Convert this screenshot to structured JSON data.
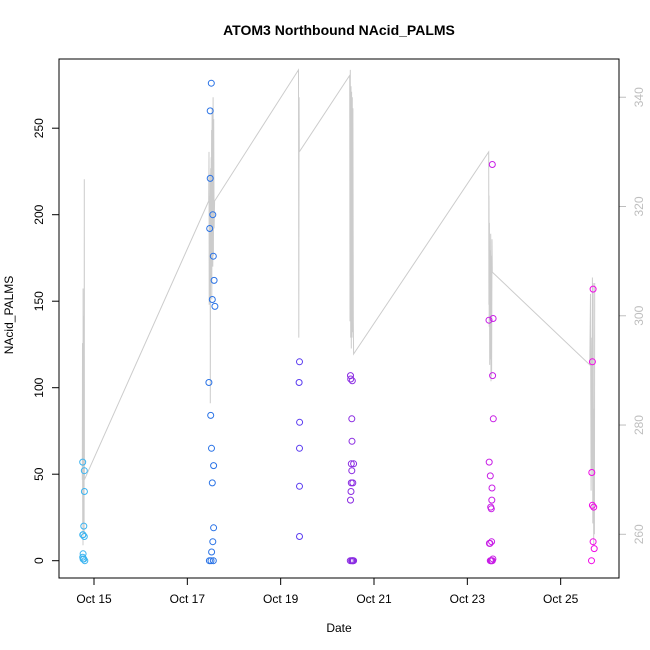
{
  "chart_data": {
    "type": "scatter",
    "title": "ATOM3 Northbound NAcid_PALMS",
    "xlabel": "Date",
    "ylabel": "NAcid_PALMS",
    "xlim": [
      "2016-10-14T06:00",
      "2016-10-26T06:00"
    ],
    "ylim": [
      -10,
      290
    ],
    "y2lim": [
      252,
      347
    ],
    "x_ticks": [
      {
        "label": "Oct 15",
        "value": "2016-10-15T00:00"
      },
      {
        "label": "Oct 17",
        "value": "2016-10-17T00:00"
      },
      {
        "label": "Oct 19",
        "value": "2016-10-19T00:00"
      },
      {
        "label": "Oct 21",
        "value": "2016-10-21T00:00"
      },
      {
        "label": "Oct 23",
        "value": "2016-10-23T00:00"
      },
      {
        "label": "Oct 25",
        "value": "2016-10-25T00:00"
      }
    ],
    "y_ticks": [
      0,
      50,
      100,
      150,
      200,
      250
    ],
    "y2_ticks": [
      260,
      280,
      300,
      320,
      340
    ],
    "grid": false,
    "legend": "none",
    "series": [
      {
        "kind": "points",
        "marker": "open-circle",
        "points": [
          [
            "2016-10-14T18:10",
            57,
            "#3cb4f0"
          ],
          [
            "2016-10-14T18:10",
            15,
            "#3cb4f0"
          ],
          [
            "2016-10-14T18:25",
            15,
            "#3cb4f0"
          ],
          [
            "2016-10-14T18:10",
            2,
            "#3cb4f0"
          ],
          [
            "2016-10-14T18:25",
            4,
            "#3cb4f0"
          ],
          [
            "2016-10-14T18:25",
            1,
            "#3cb4f0"
          ],
          [
            "2016-10-14T18:45",
            1,
            "#3cb4f0"
          ],
          [
            "2016-10-14T18:45",
            20,
            "#3cb4f0"
          ],
          [
            "2016-10-14T19:00",
            14,
            "#3cb4f0"
          ],
          [
            "2016-10-14T19:00",
            52,
            "#3cb4f0"
          ],
          [
            "2016-10-14T19:05",
            40,
            "#3cb4f0"
          ],
          [
            "2016-10-14T19:15",
            0,
            "#3cb4f0"
          ],
          [
            "2016-10-17T11:05",
            103,
            "#2a73e6"
          ],
          [
            "2016-10-17T11:20",
            0,
            "#2a73e6"
          ],
          [
            "2016-10-17T11:30",
            192,
            "#2a73e6"
          ],
          [
            "2016-10-17T11:45",
            221,
            "#2a73e6"
          ],
          [
            "2016-10-17T11:45",
            260,
            "#2a73e6"
          ],
          [
            "2016-10-17T12:00",
            84,
            "#2a73e6"
          ],
          [
            "2016-10-17T12:10",
            0,
            "#2a73e6"
          ],
          [
            "2016-10-17T12:20",
            276,
            "#2a73e6"
          ],
          [
            "2016-10-17T12:25",
            65,
            "#2a73e6"
          ],
          [
            "2016-10-17T12:30",
            5,
            "#2a73e6"
          ],
          [
            "2016-10-17T12:50",
            151,
            "#2a73e6"
          ],
          [
            "2016-10-17T12:50",
            45,
            "#2a73e6"
          ],
          [
            "2016-10-17T13:05",
            200,
            "#2a73e6"
          ],
          [
            "2016-10-17T13:05",
            11,
            "#2a73e6"
          ],
          [
            "2016-10-17T13:20",
            176,
            "#2a73e6"
          ],
          [
            "2016-10-17T13:20",
            0,
            "#2a73e6"
          ],
          [
            "2016-10-17T13:30",
            55,
            "#2a73e6"
          ],
          [
            "2016-10-17T13:30",
            19,
            "#2a73e6"
          ],
          [
            "2016-10-17T13:45",
            162,
            "#2a73e6"
          ],
          [
            "2016-10-17T14:10",
            147,
            "#2a73e6"
          ],
          [
            "2016-10-19T09:40",
            115,
            "#5b3cf0"
          ],
          [
            "2016-10-19T09:30",
            103,
            "#5b3cf0"
          ],
          [
            "2016-10-19T09:45",
            80,
            "#5b3cf0"
          ],
          [
            "2016-10-19T09:40",
            65,
            "#5b3cf0"
          ],
          [
            "2016-10-19T09:40",
            43,
            "#5b3cf0"
          ],
          [
            "2016-10-19T09:40",
            14,
            "#5b3cf0"
          ],
          [
            "2016-10-20T11:55",
            107,
            "#8a2be2"
          ],
          [
            "2016-10-20T12:00",
            105,
            "#8a2be2"
          ],
          [
            "2016-10-20T12:50",
            104,
            "#8a2be2"
          ],
          [
            "2016-10-20T12:35",
            82,
            "#8a2be2"
          ],
          [
            "2016-10-20T12:40",
            69,
            "#8a2be2"
          ],
          [
            "2016-10-20T12:20",
            56,
            "#8a2be2"
          ],
          [
            "2016-10-20T13:30",
            56,
            "#8a2be2"
          ],
          [
            "2016-10-20T12:35",
            52,
            "#8a2be2"
          ],
          [
            "2016-10-20T12:20",
            45,
            "#8a2be2"
          ],
          [
            "2016-10-20T13:05",
            45,
            "#8a2be2"
          ],
          [
            "2016-10-20T12:10",
            40,
            "#8a2be2"
          ],
          [
            "2016-10-20T11:55",
            35,
            "#8a2be2"
          ],
          [
            "2016-10-20T11:50",
            0,
            "#8a2be2"
          ],
          [
            "2016-10-20T12:30",
            0,
            "#8a2be2"
          ],
          [
            "2016-10-20T12:50",
            0,
            "#8a2be2"
          ],
          [
            "2016-10-20T13:10",
            0,
            "#8a2be2"
          ],
          [
            "2016-10-20T13:30",
            0,
            "#8a2be2"
          ],
          [
            "2016-10-23T11:10",
            139,
            "#c81ee6"
          ],
          [
            "2016-10-23T11:15",
            57,
            "#c81ee6"
          ],
          [
            "2016-10-23T11:20",
            10,
            "#c81ee6"
          ],
          [
            "2016-10-23T11:40",
            10,
            "#c81ee6"
          ],
          [
            "2016-10-23T11:50",
            49,
            "#c81ee6"
          ],
          [
            "2016-10-23T12:00",
            31,
            "#c81ee6"
          ],
          [
            "2016-10-23T12:20",
            30,
            "#c81ee6"
          ],
          [
            "2016-10-23T12:30",
            11,
            "#c81ee6"
          ],
          [
            "2016-10-23T12:35",
            35,
            "#c81ee6"
          ],
          [
            "2016-10-23T12:40",
            42,
            "#c81ee6"
          ],
          [
            "2016-10-23T12:50",
            229,
            "#c81ee6"
          ],
          [
            "2016-10-23T13:00",
            107,
            "#c81ee6"
          ],
          [
            "2016-10-23T13:15",
            140,
            "#c81ee6"
          ],
          [
            "2016-10-23T13:20",
            82,
            "#c81ee6"
          ],
          [
            "2016-10-23T11:50",
            0,
            "#c81ee6"
          ],
          [
            "2016-10-23T12:10",
            0,
            "#c81ee6"
          ],
          [
            "2016-10-23T12:30",
            0,
            "#c81ee6"
          ],
          [
            "2016-10-23T12:50",
            0,
            "#c81ee6"
          ],
          [
            "2016-10-23T13:10",
            1,
            "#c81ee6"
          ],
          [
            "2016-10-25T16:00",
            51,
            "#f00ae6"
          ],
          [
            "2016-10-25T16:20",
            115,
            "#f00ae6"
          ],
          [
            "2016-10-25T16:20",
            32,
            "#f00ae6"
          ],
          [
            "2016-10-25T16:40",
            157,
            "#f00ae6"
          ],
          [
            "2016-10-25T16:40",
            11,
            "#f00ae6"
          ],
          [
            "2016-10-25T17:00",
            31,
            "#f00ae6"
          ],
          [
            "2016-10-25T17:15",
            7,
            "#f00ae6"
          ],
          [
            "2016-10-25T15:50",
            0,
            "#f00ae6"
          ]
        ]
      },
      {
        "kind": "line",
        "axis": "right",
        "color": "#cccccc",
        "points": [
          [
            "2016-10-14T18:00",
            270
          ],
          [
            "2016-10-14T18:05",
            295
          ],
          [
            "2016-10-14T18:10",
            262
          ],
          [
            "2016-10-14T18:15",
            280
          ],
          [
            "2016-10-14T18:20",
            258
          ],
          [
            "2016-10-14T18:25",
            305
          ],
          [
            "2016-10-14T18:30",
            266
          ],
          [
            "2016-10-14T18:35",
            277
          ],
          [
            "2016-10-14T18:40",
            262
          ],
          [
            "2016-10-14T18:50",
            300
          ],
          [
            "2016-10-14T18:55",
            260
          ],
          [
            "2016-10-14T19:00",
            325
          ],
          [
            "2016-10-14T19:05",
            270
          ],
          [
            "2016-10-17T11:00",
            321
          ],
          [
            "2016-10-17T11:10",
            330
          ],
          [
            "2016-10-17T11:15",
            302
          ],
          [
            "2016-10-17T11:25",
            322
          ],
          [
            "2016-10-17T11:35",
            306
          ],
          [
            "2016-10-17T11:45",
            326
          ],
          [
            "2016-10-17T11:50",
            284
          ],
          [
            "2016-10-17T12:00",
            327
          ],
          [
            "2016-10-17T12:05",
            306
          ],
          [
            "2016-10-17T12:15",
            329
          ],
          [
            "2016-10-17T12:20",
            310
          ],
          [
            "2016-10-17T12:30",
            334
          ],
          [
            "2016-10-17T12:35",
            303
          ],
          [
            "2016-10-17T12:45",
            338
          ],
          [
            "2016-10-17T12:50",
            313
          ],
          [
            "2016-10-17T13:00",
            337
          ],
          [
            "2016-10-17T13:05",
            309
          ],
          [
            "2016-10-17T13:15",
            340
          ],
          [
            "2016-10-17T13:25",
            311
          ],
          [
            "2016-10-17T13:35",
            336
          ],
          [
            "2016-10-17T13:45",
            316
          ],
          [
            "2016-10-17T14:00",
            321
          ],
          [
            "2016-10-19T09:10",
            345
          ],
          [
            "2016-10-19T09:20",
            296
          ],
          [
            "2016-10-19T09:30",
            340
          ],
          [
            "2016-10-19T09:35",
            330
          ],
          [
            "2016-10-20T11:30",
            344
          ],
          [
            "2016-10-20T11:40",
            299
          ],
          [
            "2016-10-20T11:50",
            345
          ],
          [
            "2016-10-20T12:00",
            296
          ],
          [
            "2016-10-20T12:10",
            342
          ],
          [
            "2016-10-20T12:20",
            294
          ],
          [
            "2016-10-20T12:30",
            341
          ],
          [
            "2016-10-20T12:40",
            296
          ],
          [
            "2016-10-20T12:50",
            340
          ],
          [
            "2016-10-20T13:00",
            297
          ],
          [
            "2016-10-20T13:10",
            338
          ],
          [
            "2016-10-20T13:20",
            299
          ],
          [
            "2016-10-20T13:30",
            293
          ],
          [
            "2016-10-23T11:00",
            330
          ],
          [
            "2016-10-23T11:05",
            302
          ],
          [
            "2016-10-23T11:10",
            322
          ],
          [
            "2016-10-23T11:15",
            298
          ],
          [
            "2016-10-23T11:20",
            317
          ],
          [
            "2016-10-23T11:30",
            291
          ],
          [
            "2016-10-23T11:40",
            312
          ],
          [
            "2016-10-23T11:50",
            292
          ],
          [
            "2016-10-23T12:00",
            315
          ],
          [
            "2016-10-23T12:10",
            288
          ],
          [
            "2016-10-23T12:20",
            311
          ],
          [
            "2016-10-23T12:30",
            289
          ],
          [
            "2016-10-23T12:40",
            314
          ],
          [
            "2016-10-23T12:50",
            308
          ],
          [
            "2016-10-25T15:00",
            291
          ],
          [
            "2016-10-25T15:20",
            304
          ],
          [
            "2016-10-25T15:40",
            268
          ],
          [
            "2016-10-25T16:00",
            296
          ],
          [
            "2016-10-25T16:10",
            272
          ],
          [
            "2016-10-25T16:20",
            307
          ],
          [
            "2016-10-25T16:30",
            262
          ],
          [
            "2016-10-25T16:40",
            306
          ],
          [
            "2016-10-25T16:50",
            282
          ],
          [
            "2016-10-25T17:00",
            258
          ],
          [
            "2016-10-25T17:10",
            283
          ],
          [
            "2016-10-25T17:20",
            260
          ],
          [
            "2016-10-25T17:30",
            306
          ]
        ]
      }
    ]
  }
}
